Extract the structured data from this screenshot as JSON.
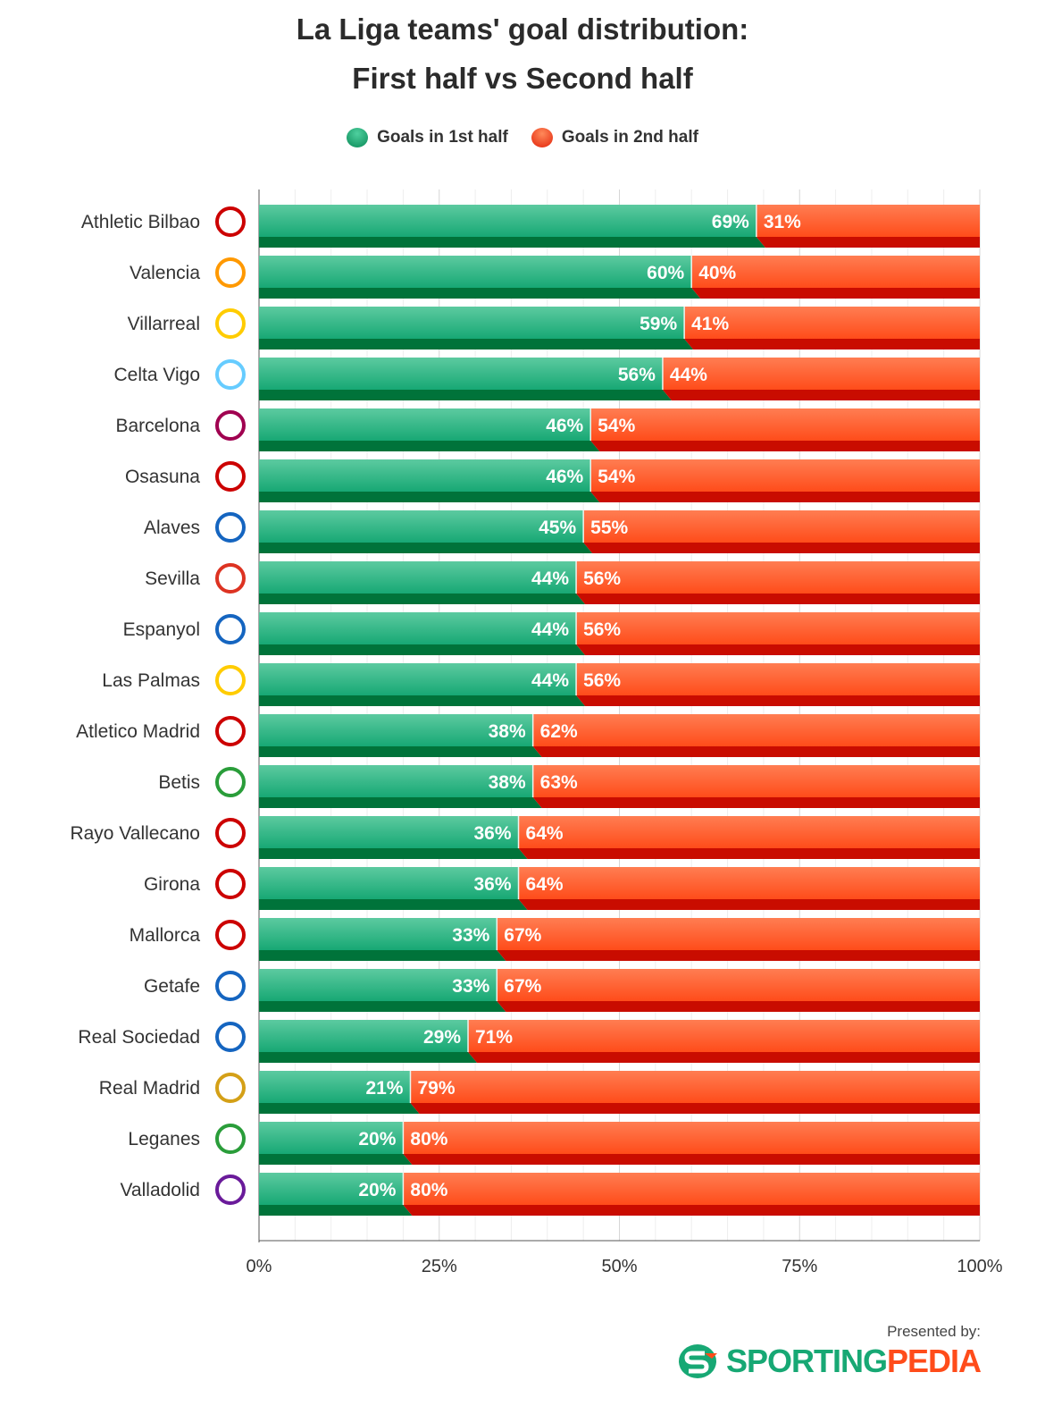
{
  "title_line1": "La Liga teams' goal distribution:",
  "title_line2": "First half vs Second half",
  "legend": {
    "first": "Goals in 1st half",
    "second": "Goals in 2nd half"
  },
  "colors": {
    "first": "#17a874",
    "first_dark": "#00733a",
    "second": "#ff4c1a",
    "second_dark": "#c90c00"
  },
  "footer": {
    "presented_by": "Presented by:",
    "brand_part1": "SPORTING",
    "brand_part2": "PEDIA"
  },
  "chart_data": {
    "type": "bar",
    "stacked": true,
    "orientation": "horizontal",
    "title": "La Liga teams' goal distribution: First half vs Second half",
    "categories": [
      "Athletic Bilbao",
      "Valencia",
      "Villarreal",
      "Celta Vigo",
      "Barcelona",
      "Osasuna",
      "Alaves",
      "Sevilla",
      "Espanyol",
      "Las Palmas",
      "Atletico Madrid",
      "Betis",
      "Rayo Vallecano",
      "Girona",
      "Mallorca",
      "Getafe",
      "Real Sociedad",
      "Real Madrid",
      "Leganes",
      "Valladolid"
    ],
    "series": [
      {
        "name": "Goals in 1st half",
        "values": [
          69,
          60,
          59,
          56,
          46,
          46,
          45,
          44,
          44,
          44,
          38,
          38,
          36,
          36,
          33,
          33,
          29,
          21,
          20,
          20
        ]
      },
      {
        "name": "Goals in 2nd half",
        "values": [
          31,
          40,
          41,
          44,
          54,
          54,
          55,
          56,
          56,
          56,
          62,
          63,
          64,
          64,
          67,
          67,
          71,
          79,
          80,
          80
        ]
      }
    ],
    "xlim": [
      0,
      100
    ],
    "xticks": [
      "0%",
      "25%",
      "50%",
      "75%",
      "100%"
    ],
    "legend_position": "top-center",
    "grid": true
  }
}
